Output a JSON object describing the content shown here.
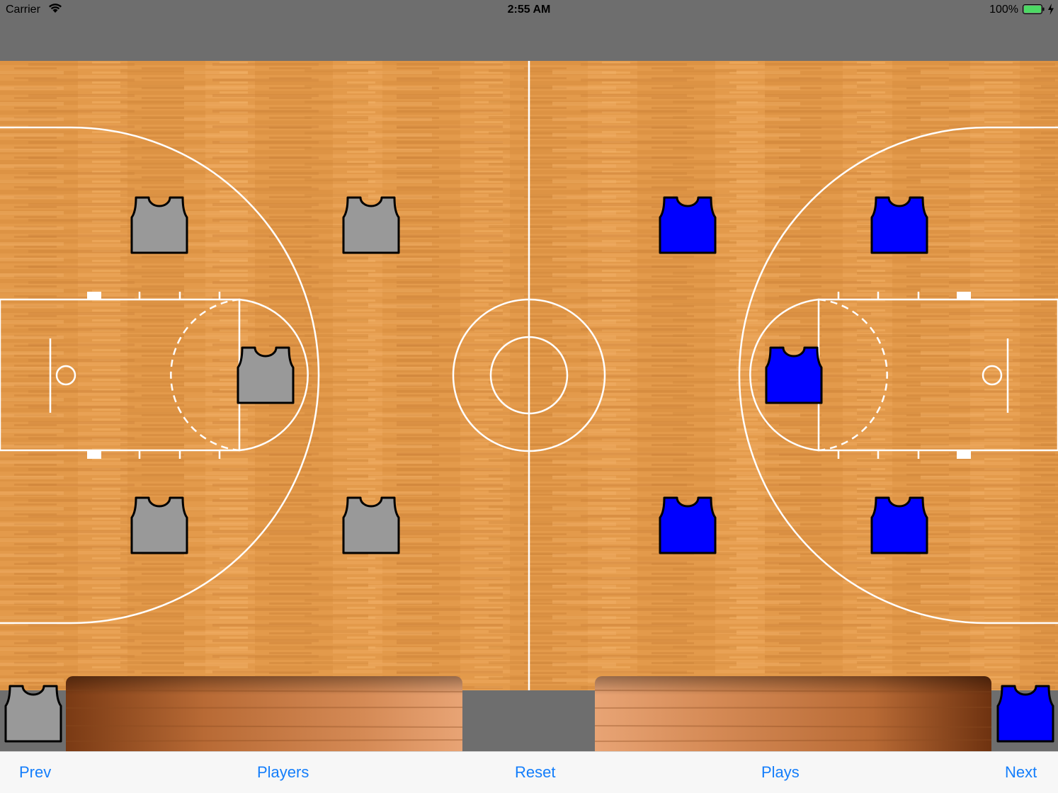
{
  "status_bar": {
    "carrier": "Carrier",
    "time": "2:55 AM",
    "battery_percent": "100%",
    "battery_color": "#4cd964"
  },
  "court": {
    "line_color": "#ffffff",
    "wood_color": "#e39a4b"
  },
  "teams": {
    "gray": {
      "color": "#999999",
      "icon": "gray-jersey-icon"
    },
    "blue": {
      "color": "#0000ff",
      "icon": "blue-jersey-icon"
    }
  },
  "toolbar": {
    "prev_label": "Prev",
    "players_label": "Players",
    "reset_label": "Reset",
    "plays_label": "Plays",
    "next_label": "Next",
    "tint_color": "#147efb"
  }
}
